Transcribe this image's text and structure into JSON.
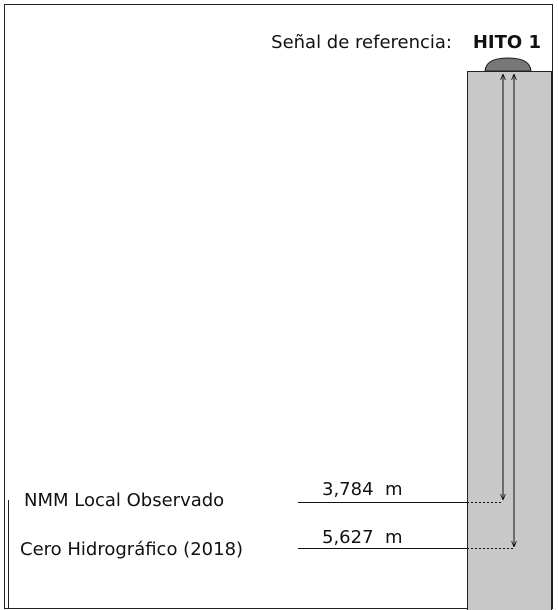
{
  "header": {
    "label": "Señal de referencia:",
    "marker": "HITO 1"
  },
  "levels": [
    {
      "name": "NMM Local Observado",
      "distance": "3,784  m"
    },
    {
      "name": "Cero Hidrográfico (2018)",
      "distance": "5,627  m"
    }
  ]
}
